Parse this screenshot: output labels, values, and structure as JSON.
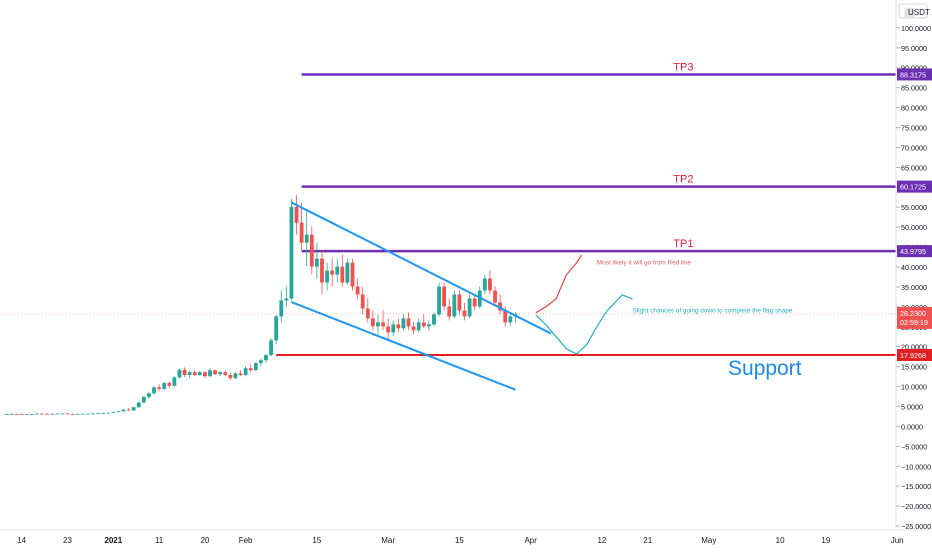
{
  "currency_label": "USDT",
  "chart_data": {
    "type": "candlestick",
    "currency": "USDT",
    "y_axis": {
      "ticks": [
        "100.0000",
        "95.0000",
        "90.0000",
        "85.0000",
        "80.0000",
        "75.0000",
        "70.0000",
        "65.0000",
        "60.0000",
        "55.0000",
        "50.0000",
        "45.0000",
        "40.0000",
        "35.0000",
        "30.0000",
        "25.0000",
        "20.0000",
        "15.0000",
        "10.0000",
        "5.0000",
        "0.0000",
        "−5.0000",
        "−10.0000",
        "−15.0000",
        "−20.0000",
        "−25.0000"
      ],
      "tick_values": [
        100,
        95,
        90,
        85,
        80,
        75,
        70,
        65,
        60,
        55,
        50,
        45,
        40,
        35,
        30,
        25,
        20,
        15,
        10,
        5,
        0,
        -5,
        -10,
        -15,
        -20,
        -25
      ],
      "ylim": [
        -27,
        107
      ]
    },
    "x_axis": {
      "labels": [
        "14",
        "23",
        "2021",
        "11",
        "20",
        "Feb",
        "15",
        "Mar",
        "15",
        "Apr",
        "12",
        "21",
        "May",
        "10",
        "19",
        "Jun"
      ],
      "label_bars": [
        3,
        12,
        21,
        30,
        39,
        47,
        61,
        75,
        89,
        103,
        117,
        126,
        138,
        152,
        161,
        175
      ],
      "bold_labels": [
        "2021"
      ],
      "start_date": "2020-12-11",
      "visible_bars": 181
    },
    "candles": [
      [
        3.0,
        3.1,
        2.9,
        3.05
      ],
      [
        3.05,
        3.2,
        3.0,
        3.1
      ],
      [
        3.1,
        3.2,
        3.0,
        3.05
      ],
      [
        3.05,
        3.15,
        2.95,
        3.0
      ],
      [
        3.0,
        3.1,
        2.9,
        3.05
      ],
      [
        3.05,
        3.2,
        3.0,
        3.1
      ],
      [
        3.1,
        3.3,
        3.0,
        3.2
      ],
      [
        3.2,
        3.3,
        3.1,
        3.15
      ],
      [
        3.15,
        3.25,
        3.0,
        3.1
      ],
      [
        3.1,
        3.2,
        3.0,
        3.15
      ],
      [
        3.15,
        3.3,
        3.1,
        3.2
      ],
      [
        3.2,
        3.3,
        3.1,
        3.25
      ],
      [
        3.25,
        3.35,
        3.1,
        3.15
      ],
      [
        3.15,
        3.25,
        3.0,
        3.05
      ],
      [
        3.05,
        3.15,
        2.95,
        3.1
      ],
      [
        3.1,
        3.2,
        3.0,
        3.15
      ],
      [
        3.15,
        3.25,
        3.05,
        3.2
      ],
      [
        3.2,
        3.3,
        3.1,
        3.25
      ],
      [
        3.25,
        3.4,
        3.15,
        3.3
      ],
      [
        3.3,
        3.45,
        3.2,
        3.35
      ],
      [
        3.35,
        3.5,
        3.25,
        3.45
      ],
      [
        3.45,
        3.7,
        3.35,
        3.6
      ],
      [
        3.6,
        3.9,
        3.5,
        3.8
      ],
      [
        3.8,
        4.3,
        3.7,
        4.2
      ],
      [
        4.2,
        4.6,
        3.9,
        4.0
      ],
      [
        4.0,
        4.9,
        3.9,
        4.8
      ],
      [
        4.8,
        6.2,
        4.7,
        6.0
      ],
      [
        6.0,
        7.6,
        5.8,
        7.4
      ],
      [
        7.4,
        8.6,
        6.9,
        8.3
      ],
      [
        8.3,
        10.1,
        8.0,
        9.8
      ],
      [
        9.8,
        10.6,
        8.8,
        9.4
      ],
      [
        9.4,
        11.1,
        9.1,
        10.9
      ],
      [
        10.9,
        11.3,
        9.6,
        10.2
      ],
      [
        10.2,
        12.6,
        10.0,
        12.3
      ],
      [
        12.3,
        14.4,
        12.0,
        14.2
      ],
      [
        14.2,
        14.8,
        12.4,
        12.9
      ],
      [
        12.9,
        13.9,
        12.1,
        13.6
      ],
      [
        13.6,
        14.1,
        12.6,
        12.9
      ],
      [
        12.9,
        13.9,
        12.6,
        13.6
      ],
      [
        13.6,
        13.9,
        12.1,
        12.6
      ],
      [
        12.6,
        14.6,
        12.4,
        14.1
      ],
      [
        14.1,
        14.3,
        12.9,
        13.1
      ],
      [
        13.1,
        13.9,
        12.6,
        13.6
      ],
      [
        13.6,
        14.1,
        12.6,
        12.9
      ],
      [
        12.9,
        13.4,
        11.6,
        12.1
      ],
      [
        12.1,
        13.6,
        11.9,
        13.3
      ],
      [
        13.3,
        14.1,
        12.6,
        12.9
      ],
      [
        12.9,
        15.1,
        12.6,
        14.6
      ],
      [
        14.6,
        15.6,
        13.6,
        14.1
      ],
      [
        14.1,
        16.1,
        13.9,
        15.9
      ],
      [
        15.9,
        17.1,
        15.1,
        16.6
      ],
      [
        16.6,
        18.1,
        15.9,
        17.9
      ],
      [
        17.9,
        22.1,
        17.6,
        21.6
      ],
      [
        21.6,
        28.1,
        20.6,
        27.6
      ],
      [
        27.6,
        34.1,
        26.1,
        31.6
      ],
      [
        31.6,
        35.1,
        30.1,
        32.1
      ],
      [
        32.1,
        57.1,
        31.6,
        55.1
      ],
      [
        55.1,
        58.1,
        48.1,
        51.1
      ],
      [
        51.1,
        56.1,
        44.1,
        46.1
      ],
      [
        46.1,
        54.1,
        40.1,
        48.1
      ],
      [
        48.1,
        50.1,
        38.1,
        40.1
      ],
      [
        40.1,
        46.1,
        37.1,
        42.1
      ],
      [
        42.1,
        44.1,
        33.1,
        36.1
      ],
      [
        36.1,
        41.1,
        34.1,
        39.1
      ],
      [
        39.1,
        42.1,
        35.1,
        38.1
      ],
      [
        38.1,
        42.1,
        36.1,
        40.1
      ],
      [
        40.1,
        43.1,
        35.1,
        36.1
      ],
      [
        36.1,
        42.1,
        35.6,
        41.1
      ],
      [
        41.1,
        42.1,
        34.1,
        35.1
      ],
      [
        35.1,
        37.1,
        32.1,
        33.1
      ],
      [
        33.1,
        35.1,
        28.1,
        29.6
      ],
      [
        29.6,
        32.1,
        26.1,
        27.1
      ],
      [
        27.1,
        29.1,
        24.1,
        25.1
      ],
      [
        25.1,
        28.1,
        22.6,
        26.1
      ],
      [
        26.1,
        29.1,
        24.1,
        25.1
      ],
      [
        25.1,
        27.1,
        21.6,
        23.6
      ],
      [
        23.6,
        26.6,
        22.6,
        25.6
      ],
      [
        25.6,
        27.1,
        23.6,
        24.6
      ],
      [
        24.6,
        28.1,
        24.1,
        27.1
      ],
      [
        27.1,
        28.6,
        24.1,
        25.1
      ],
      [
        25.1,
        26.1,
        23.1,
        24.1
      ],
      [
        24.1,
        27.1,
        23.6,
        26.1
      ],
      [
        26.1,
        28.1,
        24.6,
        25.1
      ],
      [
        25.1,
        26.6,
        24.1,
        25.6
      ],
      [
        25.6,
        28.6,
        25.1,
        28.1
      ],
      [
        28.1,
        36.1,
        27.6,
        35.1
      ],
      [
        35.1,
        36.1,
        29.1,
        30.1
      ],
      [
        30.1,
        32.1,
        26.6,
        27.6
      ],
      [
        27.6,
        34.1,
        27.1,
        33.1
      ],
      [
        33.1,
        34.1,
        28.1,
        29.1
      ],
      [
        29.1,
        31.1,
        26.6,
        27.6
      ],
      [
        27.6,
        33.1,
        27.1,
        32.1
      ],
      [
        32.1,
        33.1,
        29.1,
        30.1
      ],
      [
        30.1,
        35.1,
        29.6,
        34.1
      ],
      [
        34.1,
        38.1,
        33.1,
        37.1
      ],
      [
        37.1,
        39.1,
        33.1,
        34.1
      ],
      [
        34.1,
        35.1,
        30.1,
        31.1
      ],
      [
        31.1,
        33.1,
        28.1,
        29.1
      ],
      [
        29.1,
        30.1,
        25.1,
        26.1
      ],
      [
        26.1,
        28.6,
        25.1,
        27.6
      ],
      [
        27.6,
        28.6,
        26.1,
        28.2
      ]
    ],
    "horizontal_levels": [
      {
        "label": "TP3",
        "value": 88.3175,
        "value_text": "88.3175",
        "color": "#6a30b3"
      },
      {
        "label": "TP2",
        "value": 60.1725,
        "value_text": "60.1725",
        "color": "#6a30b3"
      },
      {
        "label": "TP1",
        "value": 43.9795,
        "value_text": "43.9795",
        "color": "#6a30b3"
      }
    ],
    "support": {
      "label": "Support",
      "value": 17.9268,
      "value_text": "17.9268",
      "color": "#e02020"
    },
    "last_price": {
      "value": 28.23,
      "value_text": "28.2300",
      "countdown": "02:59:19",
      "color": "#ef5350"
    },
    "channel": {
      "color": "#2196f3",
      "upper": [
        [
          56,
          56.2
        ],
        [
          107,
          23.3
        ]
      ],
      "lower": [
        [
          56,
          31.2
        ],
        [
          100,
          9.2
        ]
      ]
    },
    "projections": [
      {
        "id": "red",
        "color": "#e04a4a",
        "points": [
          [
            104,
            28.5
          ],
          [
            106,
            30.0
          ],
          [
            108,
            32.0
          ],
          [
            109,
            35.0
          ],
          [
            110,
            38.0
          ],
          [
            112,
            41.0
          ],
          [
            113,
            43.0
          ]
        ],
        "note": "Most likely it will go from Red line",
        "note_at": [
          116,
          40.6
        ],
        "note_color": "#e06060"
      },
      {
        "id": "cyan",
        "color": "#26b0c0",
        "points": [
          [
            104,
            28.0
          ],
          [
            106,
            25.5
          ],
          [
            108,
            22.5
          ],
          [
            110,
            19.5
          ],
          [
            112,
            18.2
          ],
          [
            114,
            20.5
          ],
          [
            116,
            25.0
          ],
          [
            118,
            29.0
          ],
          [
            121,
            33.0
          ],
          [
            123,
            32.0
          ]
        ],
        "note": "Slight chances of going down to complete the flag shape",
        "note_at": [
          123,
          28.6
        ],
        "note_color": "#26b0c0"
      }
    ]
  }
}
